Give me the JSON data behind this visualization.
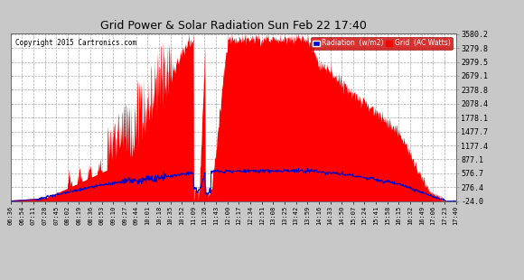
{
  "title": "Grid Power & Solar Radiation Sun Feb 22 17:40",
  "copyright": "Copyright 2015 Cartronics.com",
  "ylabel_right": [
    "3580.2",
    "3279.8",
    "2979.5",
    "2679.1",
    "2378.8",
    "2078.4",
    "1778.1",
    "1477.7",
    "1177.4",
    "877.1",
    "576.7",
    "276.4",
    "-24.0"
  ],
  "ytick_values": [
    3580.2,
    3279.8,
    2979.5,
    2679.1,
    2378.8,
    2078.4,
    1778.1,
    1477.7,
    1177.4,
    877.1,
    576.7,
    276.4,
    -24.0
  ],
  "ymin": -24.0,
  "ymax": 3580.2,
  "xtick_labels": [
    "06:36",
    "06:54",
    "07:11",
    "07:28",
    "07:45",
    "08:02",
    "08:19",
    "08:36",
    "08:53",
    "09:10",
    "09:27",
    "09:44",
    "10:01",
    "10:18",
    "10:35",
    "10:52",
    "11:09",
    "11:26",
    "11:43",
    "12:00",
    "12:17",
    "12:34",
    "12:51",
    "13:08",
    "13:25",
    "13:42",
    "13:59",
    "14:16",
    "14:33",
    "14:50",
    "15:07",
    "15:24",
    "15:41",
    "15:58",
    "16:15",
    "16:32",
    "16:49",
    "17:06",
    "17:23",
    "17:40"
  ]
}
